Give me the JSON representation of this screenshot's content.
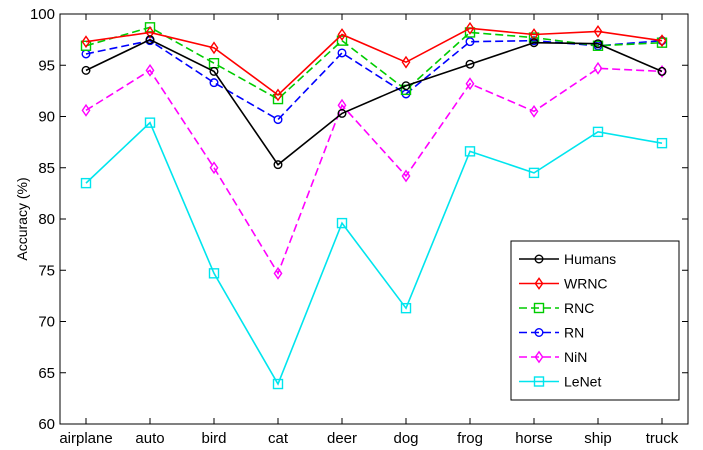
{
  "chart_data": {
    "type": "line",
    "categories": [
      "airplane",
      "auto",
      "bird",
      "cat",
      "deer",
      "dog",
      "frog",
      "horse",
      "ship",
      "truck"
    ],
    "ylabel": "Accuracy (%)",
    "ylim": [
      60,
      100
    ],
    "yticks": [
      60,
      65,
      70,
      75,
      80,
      85,
      90,
      95,
      100
    ],
    "grid": false,
    "legend_position": "bottom-right",
    "series": [
      {
        "name": "Humans",
        "color": "#000000",
        "dash": "solid",
        "marker": "circle",
        "values": [
          94.5,
          97.5,
          94.4,
          85.3,
          90.3,
          93.0,
          95.1,
          97.2,
          97.1,
          94.4
        ]
      },
      {
        "name": "WRNC",
        "color": "#ff0000",
        "dash": "solid",
        "marker": "diamond",
        "values": [
          97.3,
          98.2,
          96.7,
          92.1,
          98.0,
          95.3,
          98.6,
          98.0,
          98.3,
          97.4
        ]
      },
      {
        "name": "RNC",
        "color": "#00cc00",
        "dash": "dashed",
        "marker": "square",
        "values": [
          96.9,
          98.7,
          95.2,
          91.7,
          97.4,
          92.6,
          98.2,
          97.7,
          96.9,
          97.2
        ]
      },
      {
        "name": "RN",
        "color": "#0000ff",
        "dash": "dashed",
        "marker": "circle",
        "values": [
          96.1,
          97.4,
          93.3,
          89.7,
          96.2,
          92.2,
          97.3,
          97.4,
          96.9,
          97.4
        ]
      },
      {
        "name": "NiN",
        "color": "#ff00ff",
        "dash": "dashed",
        "marker": "diamond",
        "values": [
          90.6,
          94.5,
          85.0,
          74.7,
          91.1,
          84.2,
          93.2,
          90.5,
          94.7,
          94.4
        ]
      },
      {
        "name": "LeNet",
        "color": "#00e5ee",
        "dash": "solid",
        "marker": "square",
        "values": [
          83.5,
          89.4,
          74.7,
          63.9,
          79.6,
          71.3,
          86.6,
          84.5,
          88.5,
          87.4
        ]
      }
    ]
  }
}
